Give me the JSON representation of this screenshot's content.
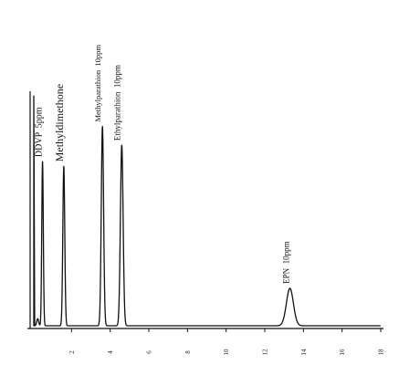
{
  "chart_data": {
    "type": "line",
    "title": "",
    "xlabel": "",
    "ylabel": "",
    "xlim": [
      0,
      18
    ],
    "ylim": [
      0,
      100
    ],
    "grid": false,
    "legend": "none",
    "x_ticks": [
      "2",
      "4",
      "6",
      "8",
      "10",
      "12",
      "14",
      "16",
      "18"
    ],
    "injection": {
      "x": 0,
      "height": 98
    },
    "peaks": [
      {
        "name": "DDVP",
        "amount": "5ppm",
        "x": 0.5,
        "height": 70,
        "width": 0.04,
        "label": "DDVP  5ppm"
      },
      {
        "name": "Methyldimethone",
        "amount": "",
        "x": 1.6,
        "height": 68,
        "width": 0.05,
        "label": "Methyldimethone"
      },
      {
        "name": "Methylparathion",
        "amount": "10ppm",
        "x": 3.6,
        "height": 85,
        "width": 0.06,
        "label": "Methylparathion  10ppm"
      },
      {
        "name": "Ethylparathion",
        "amount": "10ppm",
        "x": 4.6,
        "height": 77,
        "width": 0.07,
        "label": "Ethylparathion  10ppm"
      },
      {
        "name": "EPN",
        "amount": "10ppm",
        "x": 13.3,
        "height": 16,
        "width": 0.18,
        "label": "EPN  10ppm"
      }
    ]
  }
}
